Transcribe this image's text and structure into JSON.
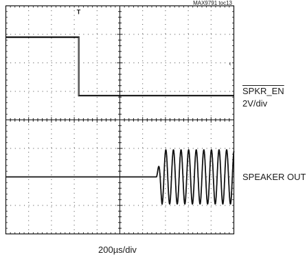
{
  "figure_tag": "MAX9791 toc13",
  "chart_data": {
    "type": "line",
    "xlabel": "200µs/div",
    "divisions": {
      "x": 10,
      "y": 8
    },
    "trigger_marker": "T",
    "series": [
      {
        "name": "SPKR_EN",
        "scale": "2V/div",
        "overline": true,
        "x": [
          0,
          3.2,
          3.2,
          10
        ],
        "y": [
          0.9,
          0.9,
          -1.15,
          -1.15
        ]
      },
      {
        "name": "SPEAKER OUT",
        "overline": false,
        "idle_until_x": 6.6,
        "amplitude_div": 0.95,
        "cycles_per_div": 3,
        "baseline": 0
      }
    ]
  }
}
